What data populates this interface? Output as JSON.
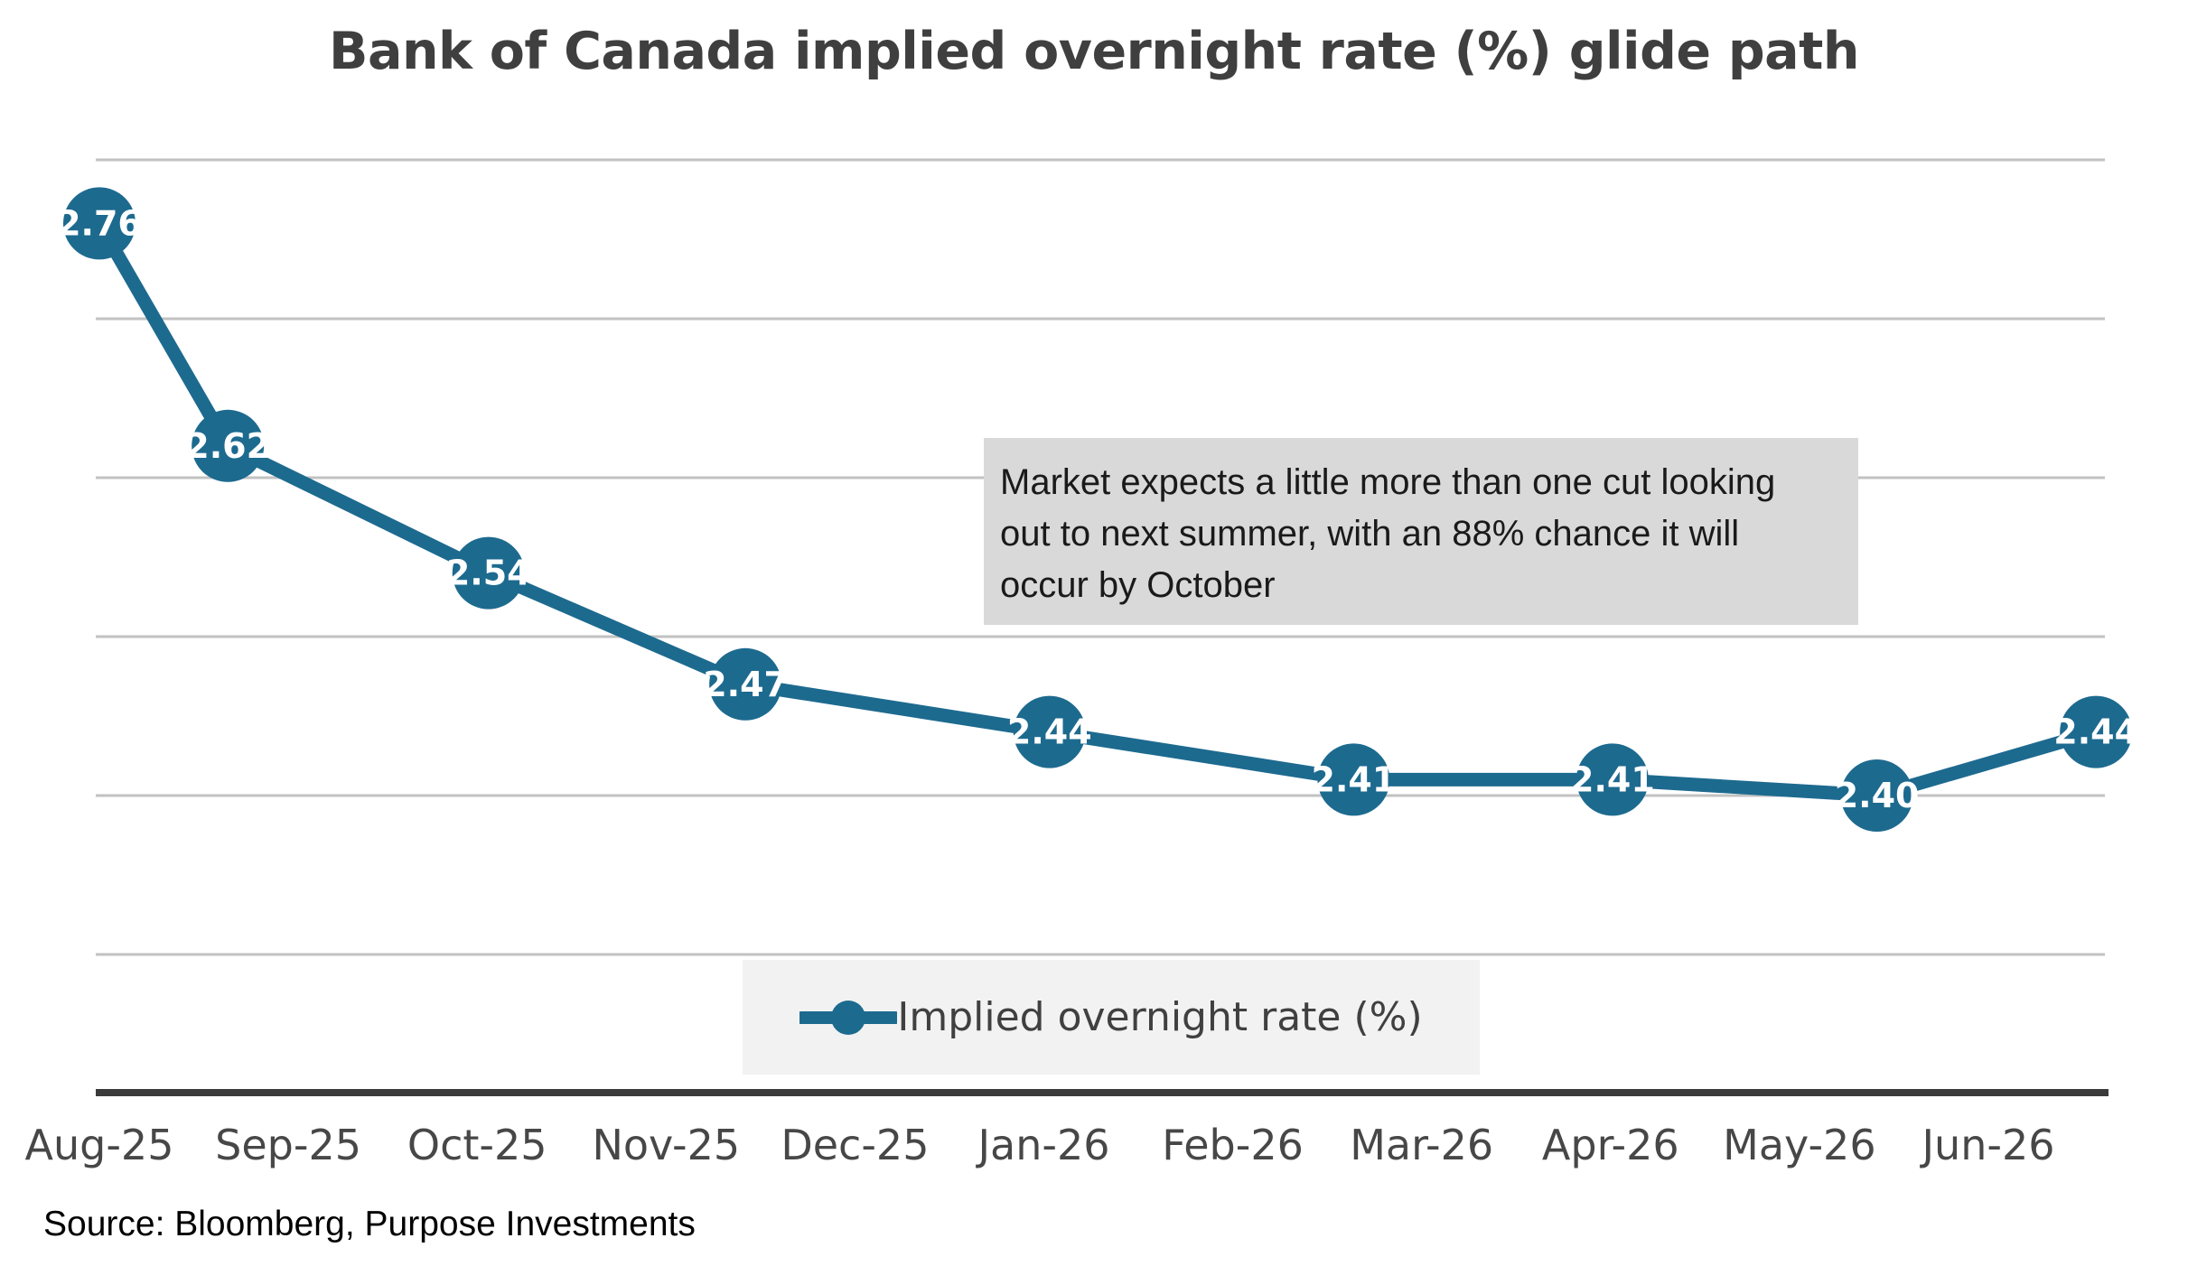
{
  "title": {
    "text": "Bank of Canada implied overnight rate (%) glide path"
  },
  "annotation": {
    "full_text": "Market expects a little more than one cut looking out to next summer, with an 88% chance it will occur by October",
    "lines": [
      "Market expects a little more than one cut looking",
      "out to next summer, with an 88% chance it will",
      "occur by October"
    ]
  },
  "legend": {
    "label": "Implied overnight rate (%)",
    "marker_icon": "line-with-dot"
  },
  "source": {
    "text": "Source: Bloomberg, Purpose Investments"
  },
  "colors": {
    "accent": "#1d6a8f",
    "title_text": "#3f3f3f",
    "axis_label_text": "#474747",
    "gridline": "#c2c2c2",
    "axis_line": "#3a3a3a",
    "annotation_bg": "#d9d9d9",
    "annotation_text": "#1a1a1a",
    "legend_bg": "#f2f2f2",
    "legend_text": "#404040",
    "marker_label_text": "#ffffff"
  },
  "chart_data": {
    "type": "line",
    "title": "Bank of Canada implied overnight rate (%) glide path",
    "series_name": "Implied overnight rate (%)",
    "xlabel": "",
    "ylabel": "",
    "x_tick_labels": [
      "Aug-25",
      "Sep-25",
      "Oct-25",
      "Nov-25",
      "Dec-25",
      "Jan-26",
      "Feb-26",
      "Mar-26",
      "Apr-26",
      "May-26",
      "Jun-26"
    ],
    "points": [
      {
        "x_month_offset": 0.0,
        "value": 2.76,
        "label": "2.76"
      },
      {
        "x_month_offset": 0.68,
        "value": 2.62,
        "label": "2.62"
      },
      {
        "x_month_offset": 2.06,
        "value": 2.54,
        "label": "2.54"
      },
      {
        "x_month_offset": 3.42,
        "value": 2.47,
        "label": "2.47"
      },
      {
        "x_month_offset": 5.03,
        "value": 2.44,
        "label": "2.44"
      },
      {
        "x_month_offset": 6.64,
        "value": 2.41,
        "label": "2.41"
      },
      {
        "x_month_offset": 8.01,
        "value": 2.41,
        "label": "2.41"
      },
      {
        "x_month_offset": 9.41,
        "value": 2.4,
        "label": "2.40"
      },
      {
        "x_month_offset": 10.57,
        "value": 2.44,
        "label": "2.44"
      }
    ],
    "gridline_values": [
      2.8,
      2.7,
      2.6,
      2.5,
      2.4,
      2.3
    ],
    "ylim": [
      2.21,
      2.87
    ],
    "grid": true,
    "y_axis_tick_labels_visible": false,
    "data_labels": "inside white on marker",
    "legend_position": "bottom-center"
  }
}
